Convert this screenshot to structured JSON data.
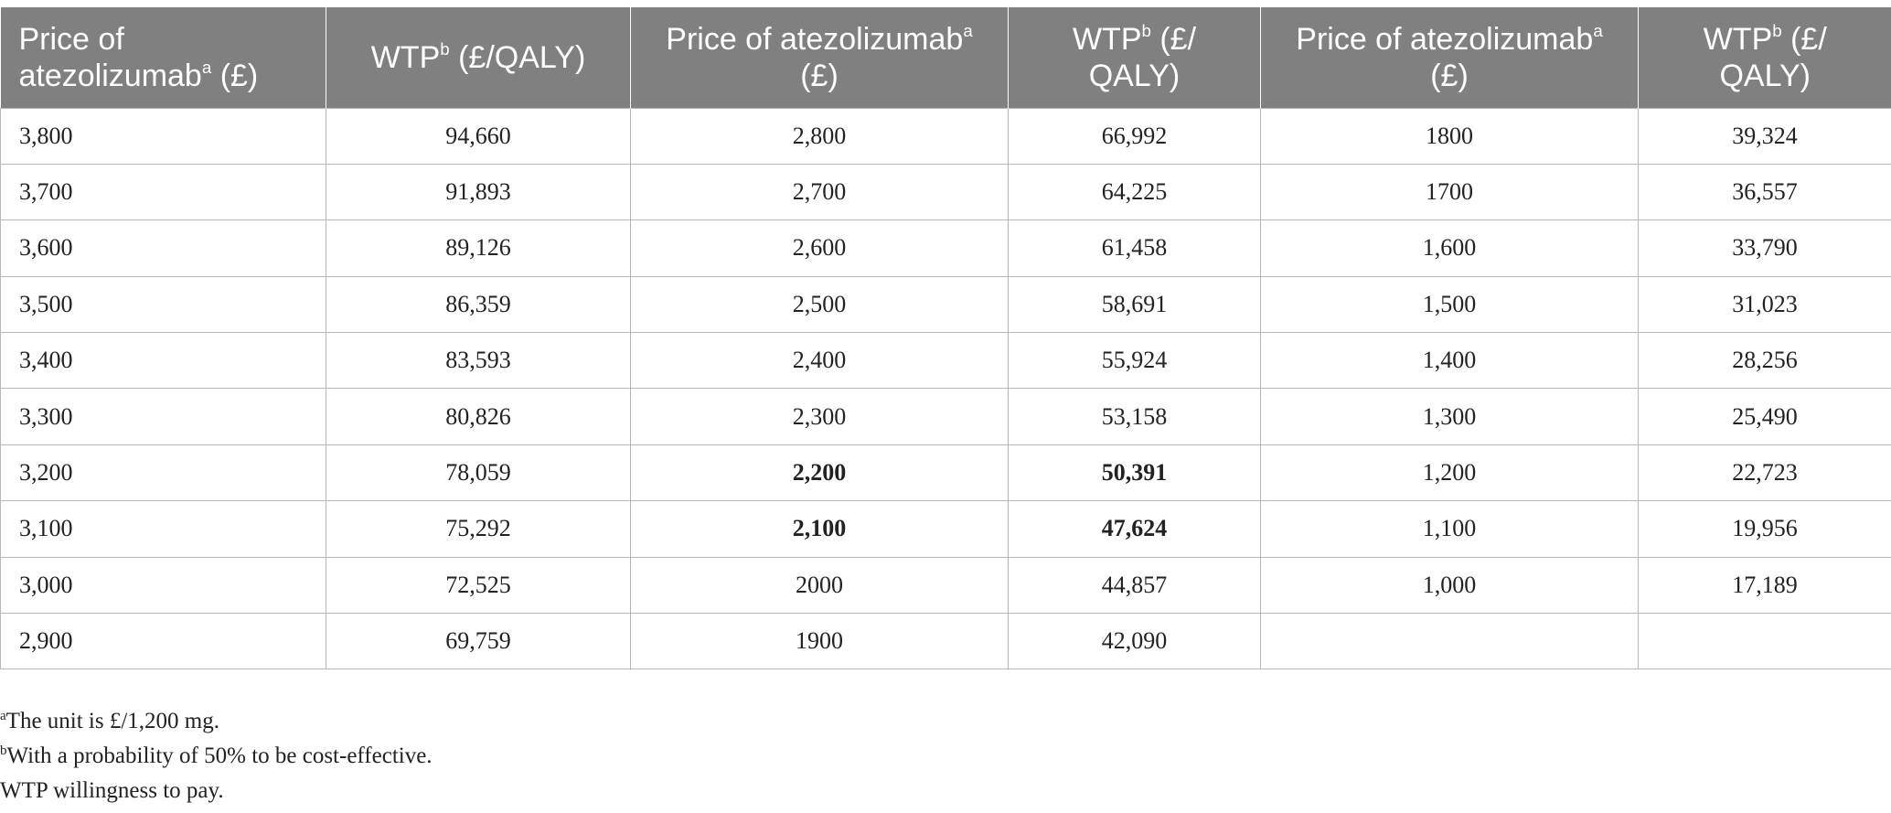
{
  "table": {
    "headers": [
      {
        "text": "Price of atezolizumab",
        "sup": "a",
        "suffix": " (£)"
      },
      {
        "text": "WTP",
        "sup": "b",
        "suffix": " (£/QALY)"
      },
      {
        "text": "Price of atezolizumab",
        "sup": "a",
        "suffix": " (£)"
      },
      {
        "text": "WTP",
        "sup": "b",
        "suffix": " (£/ QALY)"
      },
      {
        "text": "Price of atezolizumab",
        "sup": "a",
        "suffix": " (£)"
      },
      {
        "text": "WTP",
        "sup": "b",
        "suffix": " (£/ QALY)"
      }
    ],
    "rows": [
      [
        "3,800",
        "94,660",
        "2,800",
        "66,992",
        "1800",
        "39,324"
      ],
      [
        "3,700",
        "91,893",
        "2,700",
        "64,225",
        "1700",
        "36,557"
      ],
      [
        "3,600",
        "89,126",
        "2,600",
        "61,458",
        "1,600",
        "33,790"
      ],
      [
        "3,500",
        "86,359",
        "2,500",
        "58,691",
        "1,500",
        "31,023"
      ],
      [
        "3,400",
        "83,593",
        "2,400",
        "55,924",
        "1,400",
        "28,256"
      ],
      [
        "3,300",
        "80,826",
        "2,300",
        "53,158",
        "1,300",
        "25,490"
      ],
      [
        "3,200",
        "78,059",
        "2,200",
        "50,391",
        "1,200",
        "22,723"
      ],
      [
        "3,100",
        "75,292",
        "2,100",
        "47,624",
        "1,100",
        "19,956"
      ],
      [
        "3,000",
        "72,525",
        "2000",
        "44,857",
        "1,000",
        "17,189"
      ],
      [
        "2,900",
        "69,759",
        "1900",
        "42,090",
        "",
        ""
      ]
    ],
    "bold_cells": [
      [
        6,
        2
      ],
      [
        6,
        3
      ],
      [
        7,
        2
      ],
      [
        7,
        3
      ]
    ]
  },
  "footnotes": [
    {
      "sup": "a",
      "text": "The unit is £/1,200 mg."
    },
    {
      "sup": "b",
      "text": "With a probability of 50% to be cost-effective."
    },
    {
      "sup": "",
      "text": "WTP willingness to pay."
    }
  ]
}
